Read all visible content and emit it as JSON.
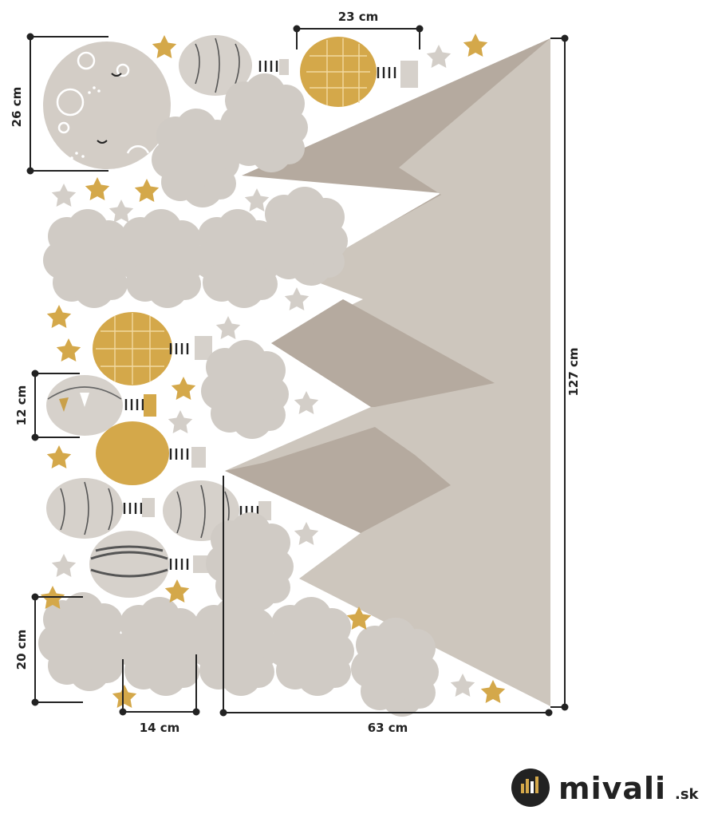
{
  "dimensions": {
    "moon_height": "26 cm",
    "balloon_width": "23 cm",
    "small_balloon_height": "12 cm",
    "cloud_height": "20 cm",
    "cloud_width": "14 cm",
    "mountains_width": "63 cm",
    "total_height": "127 cm"
  },
  "brand": {
    "name": "mivali",
    "suffix": ".sk"
  },
  "colors": {
    "mountain_light": "#cdc6bd",
    "mountain_dark": "#b5aa9f",
    "cloud": "#d0cbc5",
    "gold": "#d4a84a",
    "star_grey": "#d3cec8",
    "balloon_grey": "#d6d1cb",
    "ink": "#222222"
  }
}
